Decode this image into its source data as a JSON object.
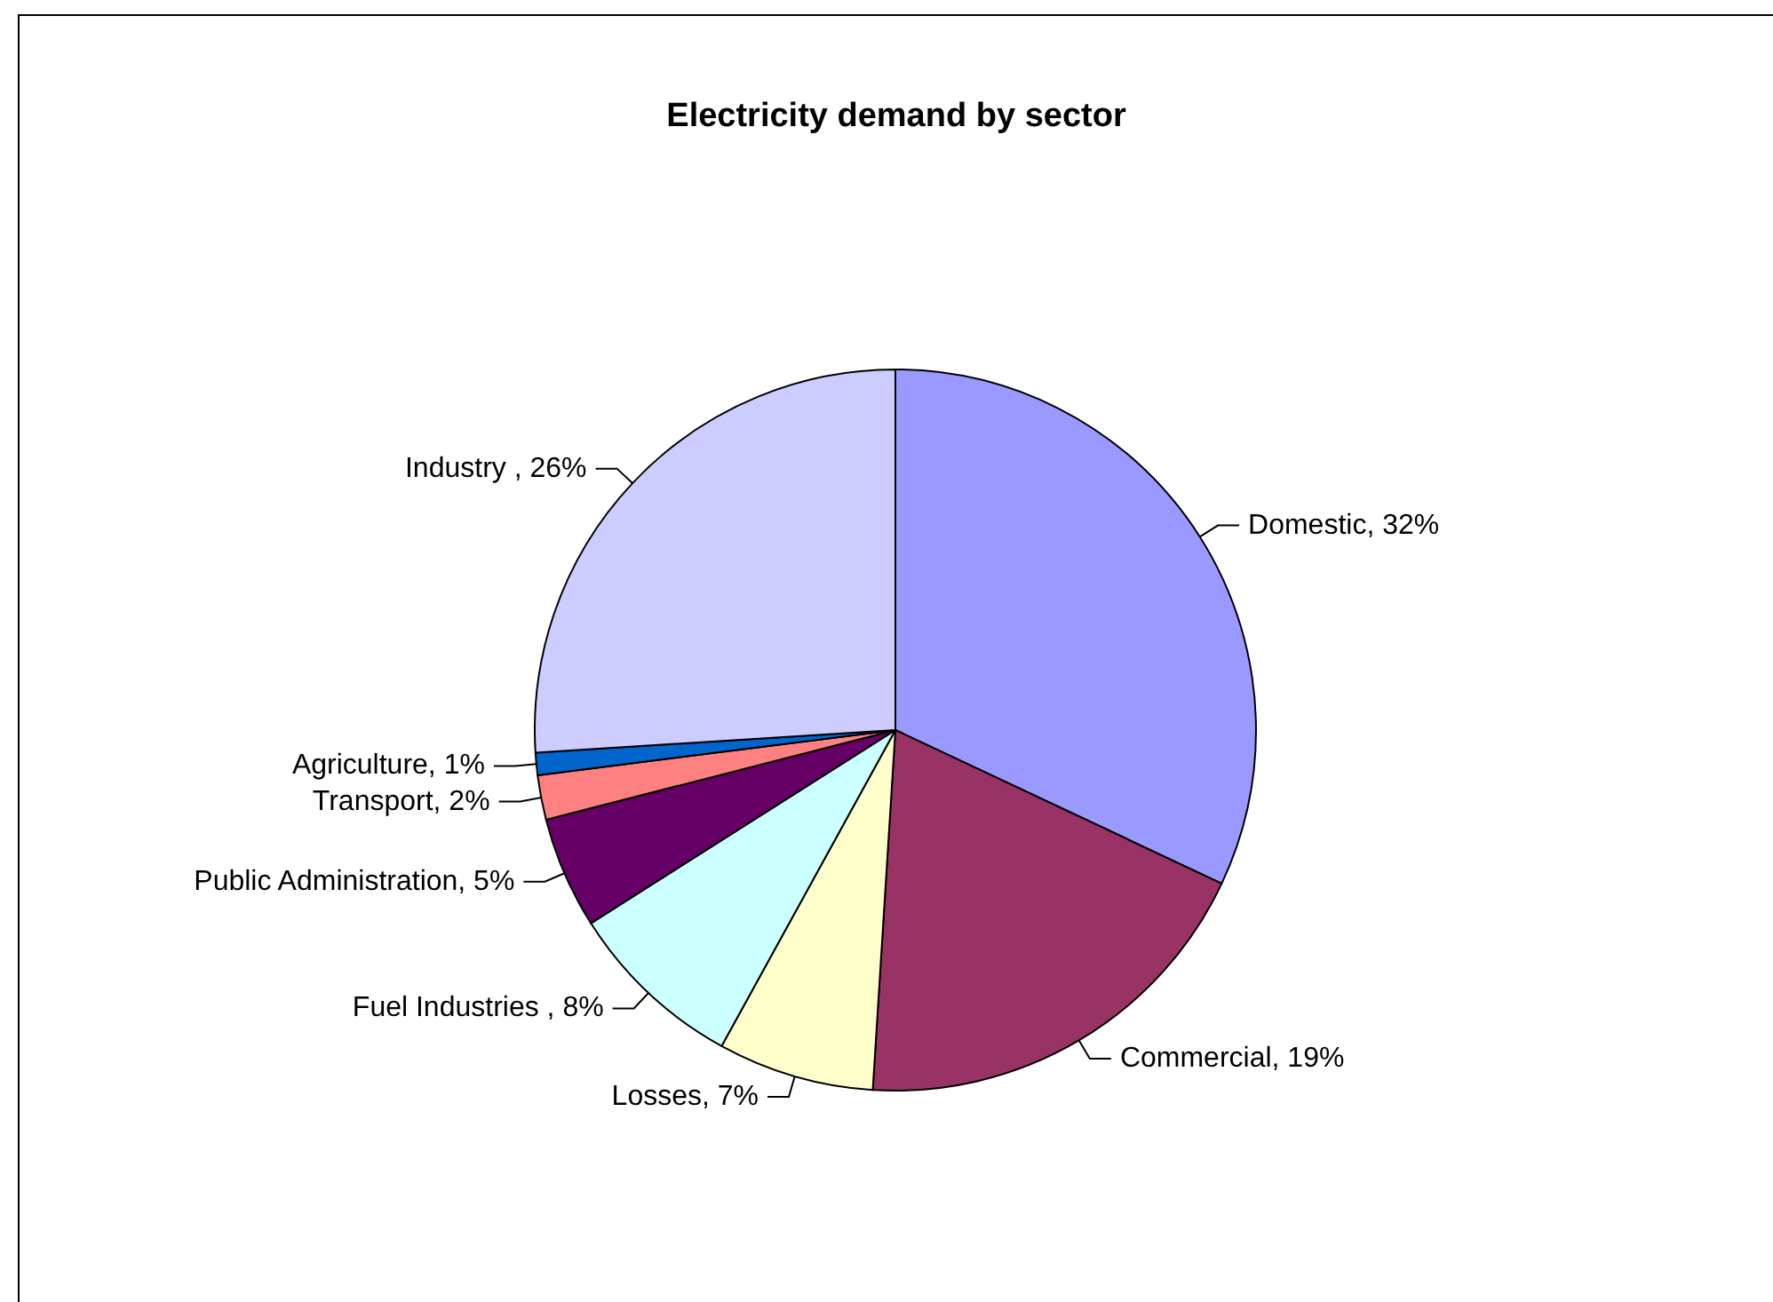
{
  "chart_data": {
    "type": "pie",
    "title": "Electricity demand by sector",
    "categories": [
      "Domestic",
      "Commercial",
      "Losses",
      "Fuel Industries ",
      "Public Administration",
      "Transport",
      "Agriculture",
      "Industry "
    ],
    "values": [
      32,
      19,
      7,
      8,
      5,
      2,
      1,
      26
    ],
    "value_labels": [
      "32%",
      "19%",
      "7%",
      "8%",
      "5%",
      "2%",
      "1%",
      "26%"
    ],
    "colors": [
      "#9999ff",
      "#993366",
      "#ffffcc",
      "#ccffff",
      "#660066",
      "#ff8080",
      "#0066cc",
      "#ccccff"
    ],
    "legend": false
  }
}
